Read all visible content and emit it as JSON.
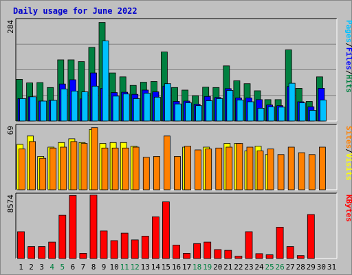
{
  "colors": {
    "background": "#c0c0c0",
    "panel": "#c0c0c0",
    "grid": "#808080",
    "title": "#0000cc",
    "hits": "#008040",
    "files": "#0000ff",
    "pages": "#00c0ff",
    "visits": "#ffff00",
    "sites": "#ff8000",
    "kbytes": "#ff0000",
    "weekend_label": "#008040",
    "weekday_label": "#000000"
  },
  "chart_data": {
    "title": "Daily usage for June 2022",
    "type": "bar",
    "categories": [
      "1",
      "2",
      "3",
      "4",
      "5",
      "6",
      "7",
      "8",
      "9",
      "10",
      "11",
      "12",
      "13",
      "14",
      "15",
      "16",
      "17",
      "18",
      "19",
      "20",
      "21",
      "22",
      "23",
      "24",
      "25",
      "26",
      "27",
      "28",
      "29",
      "30",
      "31"
    ],
    "weekend_days": [
      4,
      5,
      11,
      12,
      18,
      19,
      25,
      26
    ],
    "panels": [
      {
        "id": "top",
        "max_label": "284",
        "ymax": 284,
        "legend": [
          {
            "text": "Pages",
            "color": "#00c0ff"
          },
          {
            "text": "/",
            "color": "#000000"
          },
          {
            "text": "Files",
            "color": "#0000ff"
          },
          {
            "text": "/",
            "color": "#000000"
          },
          {
            "text": "Hits",
            "color": "#008040"
          }
        ],
        "series": [
          {
            "name": "Hits",
            "color": "#008040",
            "values": [
              117,
              107,
              108,
              94,
              172,
              172,
              167,
              207,
              277,
              135,
              124,
              100,
              109,
              111,
              194,
              94,
              87,
              71,
              95,
              94,
              155,
              113,
              105,
              85,
              60,
              60,
              200,
              92,
              55,
              124,
              0
            ]
          },
          {
            "name": "Files",
            "color": "#0000ff",
            "values": [
              63,
              68,
              56,
              58,
              104,
              116,
              62,
              135,
              92,
              80,
              81,
              75,
              87,
              82,
              98,
              55,
              56,
              47,
              69,
              66,
              91,
              65,
              65,
              60,
              45,
              43,
              97,
              54,
              40,
              92,
              0
            ]
          },
          {
            "name": "Pages",
            "color": "#00c0ff",
            "values": [
              63,
              68,
              56,
              58,
              90,
              84,
              82,
              98,
              225,
              70,
              76,
              63,
              78,
              67,
              105,
              48,
              51,
              43,
              57,
              63,
              86,
              59,
              54,
              36,
              40,
              39,
              106,
              51,
              30,
              59,
              0
            ]
          }
        ]
      },
      {
        "id": "mid",
        "max_label": "69",
        "ymax": 69,
        "legend": [
          {
            "text": "Sites",
            "color": "#ff8000"
          },
          {
            "text": "/",
            "color": "#000000"
          },
          {
            "text": "Visits",
            "color": "#ffff00"
          }
        ],
        "series": [
          {
            "name": "Visits",
            "color": "#ffff00",
            "values": [
              49,
              58,
              36,
              46,
              51,
              55,
              51,
              65,
              50,
              51,
              51,
              47,
              0,
              0,
              0,
              0,
              46,
              0,
              46,
              0,
              50,
              50,
              42,
              47,
              38,
              0,
              0,
              0,
              0,
              0,
              0
            ]
          },
          {
            "name": "Sites",
            "color": "#ff8000",
            "values": [
              44,
              52,
              34,
              45,
              46,
              52,
              50,
              67,
              45,
              45,
              45,
              46,
              35,
              36,
              58,
              36,
              47,
              43,
              44,
              45,
              46,
              50,
              46,
              42,
              44,
              38,
              46,
              40,
              38,
              46,
              0
            ]
          }
        ]
      },
      {
        "id": "bottom",
        "max_label": "8574",
        "ymax": 8574,
        "legend": [
          {
            "text": "KBytes",
            "color": "#ff0000"
          }
        ],
        "series": [
          {
            "name": "KBytes",
            "color": "#ff0000",
            "values": [
              3600,
              1600,
              1600,
              2200,
              5800,
              8450,
              700,
              8500,
              3700,
              2400,
              3400,
              2500,
              3000,
              5600,
              7600,
              1800,
              700,
              2000,
              2200,
              1200,
              1100,
              300,
              3600,
              650,
              500,
              4200,
              1600,
              400,
              5900,
              0,
              0
            ]
          }
        ]
      }
    ]
  }
}
